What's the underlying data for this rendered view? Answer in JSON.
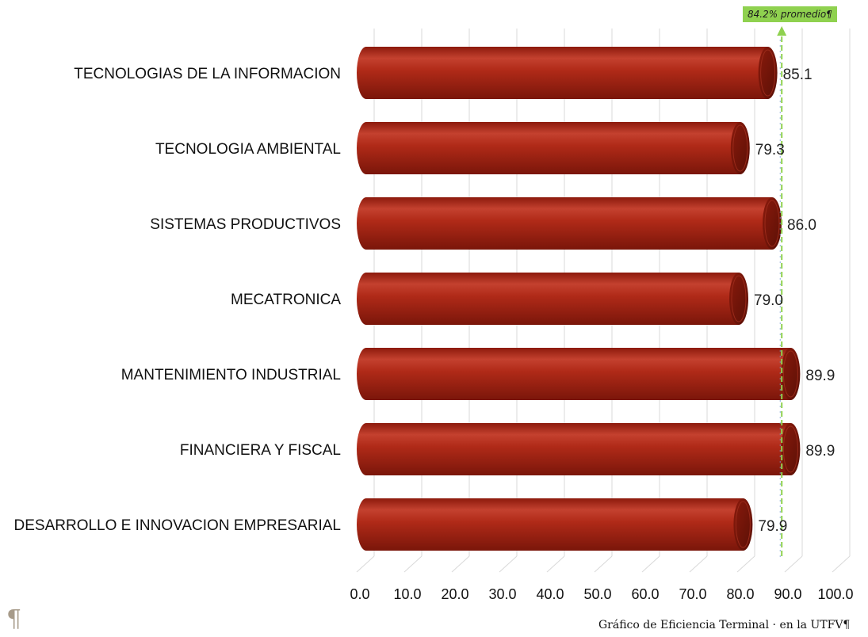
{
  "chart_data": {
    "type": "bar",
    "orientation": "horizontal",
    "style": "3d-cylinder",
    "categories": [
      "TECNOLOGIAS DE LA INFORMACION",
      "TECNOLOGIA AMBIENTAL",
      "SISTEMAS PRODUCTIVOS",
      "MECATRONICA",
      "MANTENIMIENTO INDUSTRIAL",
      "FINANCIERA Y FISCAL",
      "DESARROLLO E INNOVACION EMPRESARIAL"
    ],
    "values": [
      85.1,
      79.3,
      86.0,
      79.0,
      89.9,
      89.9,
      79.9
    ],
    "value_labels": [
      "85.1",
      "79.3",
      "86.0",
      "79.0",
      "89.9",
      "89.9",
      "79.9"
    ],
    "xlim": [
      0,
      100
    ],
    "ticks": [
      "0.0",
      "10.0",
      "20.0",
      "30.0",
      "40.0",
      "50.0",
      "60.0",
      "70.0",
      "80.0",
      "90.0",
      "100.0"
    ],
    "grid": true,
    "average": {
      "value": 84.2,
      "label": "84.2% promedio¶"
    },
    "colors": {
      "bar": "#a82213",
      "bar_dark": "#6e1408",
      "bar_highlight": "#d4604e",
      "grid": "#d9d9d9",
      "average_line": "#8fd14f",
      "average_label_bg": "#8fd14f"
    }
  },
  "page": {
    "pilcrow": "¶",
    "caption": "Gráfico de Eficiencia Terminal · en la UTFV¶"
  }
}
